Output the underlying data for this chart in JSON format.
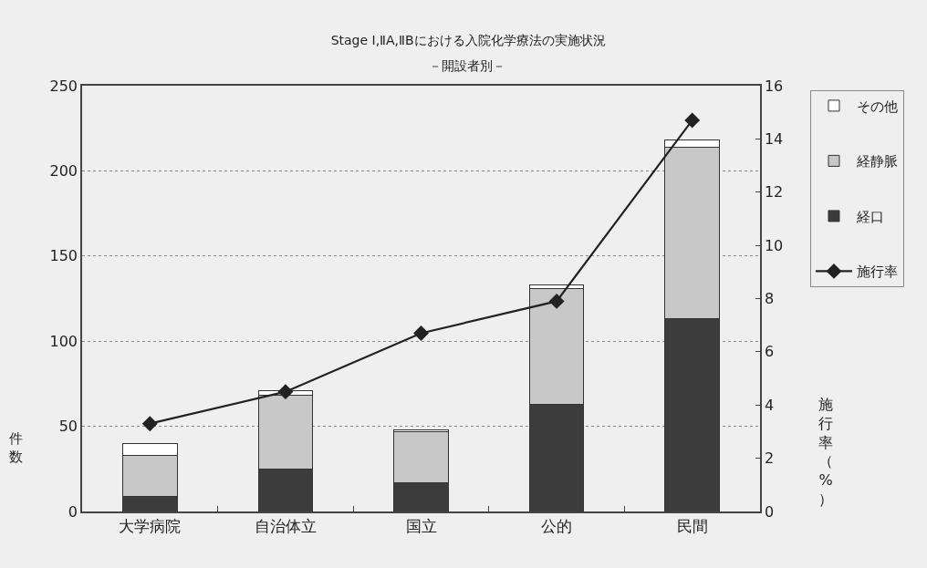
{
  "chart_data": {
    "type": "bar",
    "title": "Stage Ⅰ,ⅡA,ⅡBにおける入院化学療法の実施状況",
    "subtitle": "－開設者別－",
    "ylabel": "件数",
    "y2label": "施行率（%）",
    "categories": [
      "大学病院",
      "自治体立",
      "国立",
      "公的",
      "民間"
    ],
    "series": [
      {
        "name": "経口",
        "color": "#3c3c3c",
        "values": [
          9,
          25,
          17,
          63,
          113
        ]
      },
      {
        "name": "経静脈",
        "color": "#c8c8c8",
        "values": [
          24,
          43,
          30,
          68,
          101
        ]
      },
      {
        "name": "その他",
        "color": "#ffffff",
        "values": [
          7,
          3,
          1,
          2,
          4
        ]
      },
      {
        "name": "施行率",
        "type": "line",
        "axis": "y2",
        "color": "#222222",
        "values": [
          3.3,
          4.5,
          6.7,
          7.9,
          14.7
        ]
      }
    ],
    "stacked": true,
    "ylim": [
      0,
      250
    ],
    "yticks": [
      0,
      50,
      100,
      150,
      200,
      250
    ],
    "y2lim": [
      0,
      16
    ],
    "y2ticks": [
      0,
      2,
      4,
      6,
      8,
      10,
      12,
      14,
      16
    ],
    "grid": "y",
    "legend": "top right",
    "marker": "diamond",
    "line_style": "solid"
  }
}
